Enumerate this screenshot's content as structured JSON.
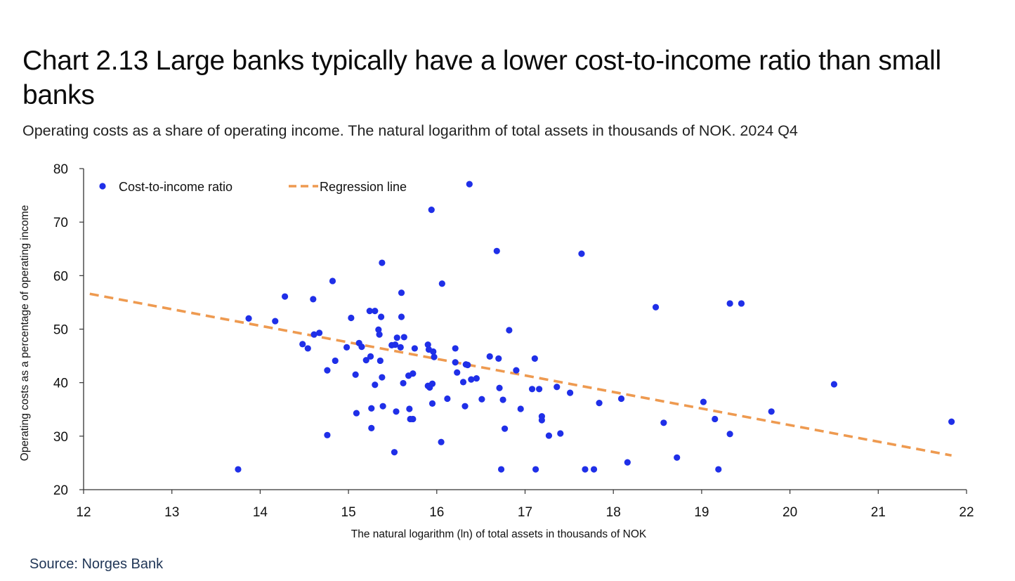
{
  "title": "Chart 2.13 Large banks typically have a lower cost-to-income ratio than small banks",
  "subtitle": "Operating costs as a share of operating income. The natural logarithm of total assets in thousands of NOK. 2024 Q4",
  "source": "Source: Norges Bank",
  "colors": {
    "points": "#1f2fe8",
    "regression": "#ee9a50",
    "axis": "#333333"
  },
  "chart_data": {
    "type": "scatter",
    "xlabel": "The natural logarithm (ln) of total assets in thousands of NOK",
    "ylabel": "Operating costs  as a percentage of operating income",
    "xlim": [
      12,
      22
    ],
    "ylim": [
      20,
      80
    ],
    "xticks": [
      12,
      13,
      14,
      15,
      16,
      17,
      18,
      19,
      20,
      21,
      22
    ],
    "yticks": [
      20,
      30,
      40,
      50,
      60,
      70,
      80
    ],
    "legend": {
      "position": "top-left",
      "entries": [
        "Cost-to-income ratio",
        "Regression line"
      ]
    },
    "series": [
      {
        "name": "Cost-to-income ratio",
        "kind": "scatter",
        "points": [
          [
            13.75,
            23.8
          ],
          [
            13.87,
            52.0
          ],
          [
            14.17,
            51.5
          ],
          [
            14.28,
            56.1
          ],
          [
            14.48,
            47.2
          ],
          [
            14.54,
            46.4
          ],
          [
            14.6,
            55.6
          ],
          [
            14.61,
            49.0
          ],
          [
            14.67,
            49.3
          ],
          [
            14.76,
            42.3
          ],
          [
            14.76,
            30.2
          ],
          [
            14.82,
            59.0
          ],
          [
            14.85,
            44.1
          ],
          [
            14.98,
            46.6
          ],
          [
            15.03,
            52.1
          ],
          [
            15.08,
            41.5
          ],
          [
            15.09,
            34.3
          ],
          [
            15.12,
            47.4
          ],
          [
            15.15,
            46.7
          ],
          [
            15.2,
            44.2
          ],
          [
            15.24,
            53.4
          ],
          [
            15.25,
            44.9
          ],
          [
            15.26,
            35.2
          ],
          [
            15.26,
            31.5
          ],
          [
            15.3,
            53.4
          ],
          [
            15.3,
            39.6
          ],
          [
            15.34,
            49.9
          ],
          [
            15.35,
            49.0
          ],
          [
            15.36,
            44.1
          ],
          [
            15.37,
            52.3
          ],
          [
            15.38,
            41.0
          ],
          [
            15.38,
            62.4
          ],
          [
            15.39,
            35.6
          ],
          [
            15.49,
            47.0
          ],
          [
            15.52,
            27.0
          ],
          [
            15.53,
            47.1
          ],
          [
            15.54,
            34.6
          ],
          [
            15.55,
            48.4
          ],
          [
            15.59,
            46.6
          ],
          [
            15.6,
            56.8
          ],
          [
            15.6,
            52.3
          ],
          [
            15.62,
            39.9
          ],
          [
            15.63,
            48.5
          ],
          [
            15.68,
            41.3
          ],
          [
            15.69,
            35.1
          ],
          [
            15.7,
            33.2
          ],
          [
            15.73,
            33.2
          ],
          [
            15.73,
            41.7
          ],
          [
            15.75,
            46.4
          ],
          [
            15.9,
            47.1
          ],
          [
            15.9,
            39.4
          ],
          [
            15.91,
            46.2
          ],
          [
            15.92,
            39.1
          ],
          [
            15.94,
            72.3
          ],
          [
            15.95,
            36.1
          ],
          [
            15.95,
            39.8
          ],
          [
            15.96,
            45.8
          ],
          [
            15.97,
            44.8
          ],
          [
            16.05,
            28.9
          ],
          [
            16.06,
            58.5
          ],
          [
            16.12,
            37.0
          ],
          [
            16.21,
            46.4
          ],
          [
            16.21,
            43.8
          ],
          [
            16.23,
            41.9
          ],
          [
            16.3,
            40.1
          ],
          [
            16.32,
            35.6
          ],
          [
            16.33,
            43.4
          ],
          [
            16.35,
            43.3
          ],
          [
            16.37,
            77.1
          ],
          [
            16.39,
            40.6
          ],
          [
            16.45,
            40.8
          ],
          [
            16.51,
            36.9
          ],
          [
            16.6,
            44.9
          ],
          [
            16.68,
            64.6
          ],
          [
            16.7,
            44.5
          ],
          [
            16.71,
            39.0
          ],
          [
            16.73,
            23.8
          ],
          [
            16.75,
            36.8
          ],
          [
            16.77,
            31.4
          ],
          [
            16.82,
            49.8
          ],
          [
            16.9,
            42.3
          ],
          [
            16.95,
            35.1
          ],
          [
            17.08,
            38.8
          ],
          [
            17.11,
            44.5
          ],
          [
            17.12,
            23.8
          ],
          [
            17.16,
            38.8
          ],
          [
            17.19,
            33.7
          ],
          [
            17.19,
            33.0
          ],
          [
            17.27,
            30.1
          ],
          [
            17.36,
            39.2
          ],
          [
            17.4,
            30.5
          ],
          [
            17.51,
            38.1
          ],
          [
            17.64,
            64.1
          ],
          [
            17.68,
            23.8
          ],
          [
            17.78,
            23.8
          ],
          [
            17.84,
            36.2
          ],
          [
            18.09,
            37.0
          ],
          [
            18.16,
            25.1
          ],
          [
            18.48,
            54.1
          ],
          [
            18.57,
            32.5
          ],
          [
            18.72,
            26.0
          ],
          [
            19.02,
            36.4
          ],
          [
            19.15,
            33.2
          ],
          [
            19.19,
            23.8
          ],
          [
            19.32,
            30.4
          ],
          [
            19.32,
            54.8
          ],
          [
            19.45,
            54.8
          ],
          [
            19.79,
            34.6
          ],
          [
            20.5,
            39.7
          ],
          [
            21.83,
            32.7
          ]
        ]
      },
      {
        "name": "Regression line",
        "kind": "line",
        "style": "dashed",
        "points": [
          [
            12.07,
            56.6
          ],
          [
            21.83,
            26.4
          ]
        ]
      }
    ]
  }
}
